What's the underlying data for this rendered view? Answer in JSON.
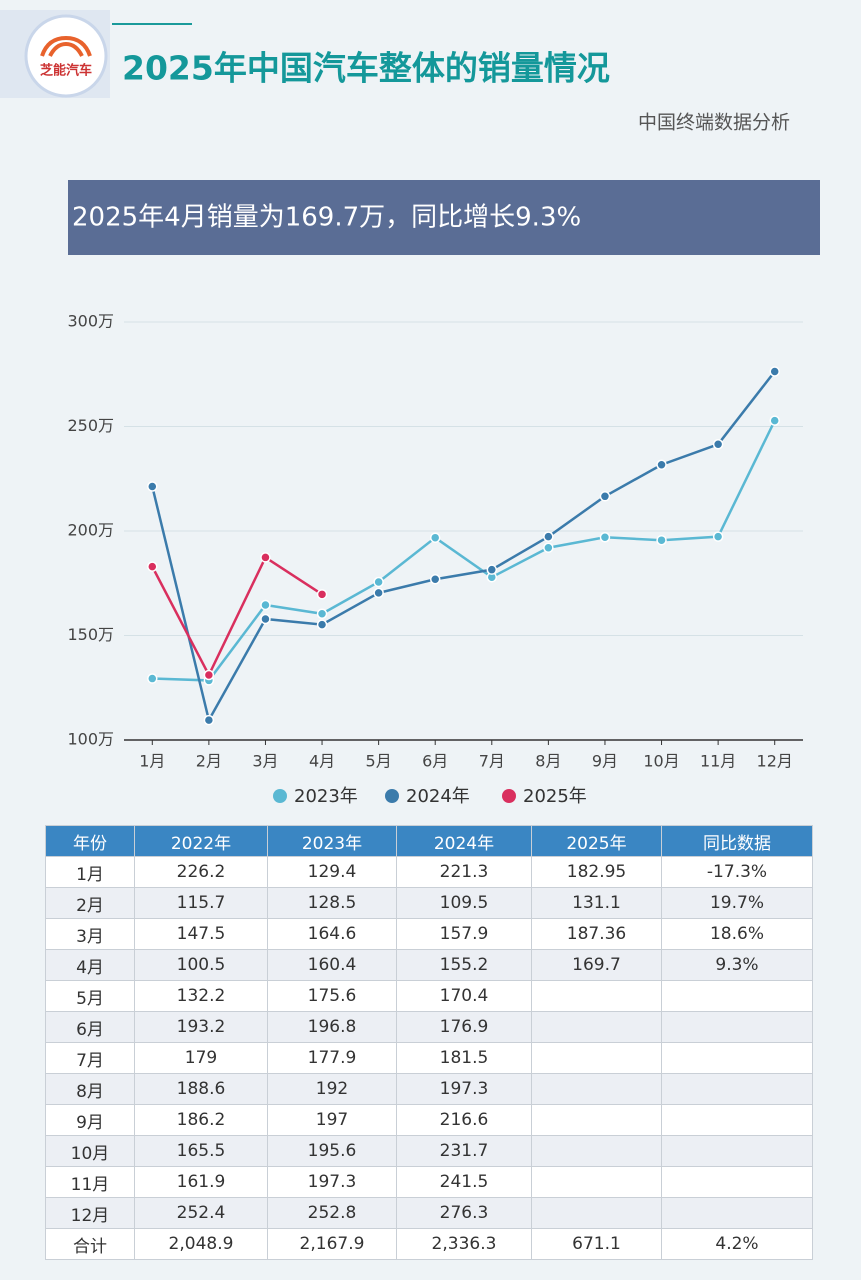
{
  "header": {
    "logo": "芝能汽车",
    "title": "2025年中国汽车整体的销量情况",
    "subtitle": "中国终端数据分析",
    "banner": "2025年4月销量为169.7万，同比增长9.3%"
  },
  "chart_data": {
    "type": "line",
    "categories": [
      "1月",
      "2月",
      "3月",
      "4月",
      "5月",
      "6月",
      "7月",
      "8月",
      "9月",
      "10月",
      "11月",
      "12月"
    ],
    "series": [
      {
        "name": "2023年",
        "color": "#5ab8d3",
        "values": [
          129.4,
          128.5,
          164.6,
          160.4,
          175.6,
          196.8,
          177.9,
          192,
          197,
          195.6,
          197.3,
          252.8
        ]
      },
      {
        "name": "2024年",
        "color": "#3b7bab",
        "values": [
          221.3,
          109.5,
          157.9,
          155.2,
          170.4,
          176.9,
          181.5,
          197.3,
          216.6,
          231.7,
          241.5,
          276.3
        ]
      },
      {
        "name": "2025年",
        "color": "#d92f5e",
        "values": [
          182.95,
          131.1,
          187.36,
          169.7,
          null,
          null,
          null,
          null,
          null,
          null,
          null,
          null
        ]
      }
    ],
    "ylim": [
      100,
      300
    ],
    "yticks": [
      {
        "value": 100,
        "label": "100万"
      },
      {
        "value": 150,
        "label": "150万"
      },
      {
        "value": 200,
        "label": "200万"
      },
      {
        "value": 250,
        "label": "250万"
      },
      {
        "value": 300,
        "label": "300万"
      }
    ],
    "grid": true,
    "legend": "bottom"
  },
  "table": {
    "header": [
      "年份",
      "2022年",
      "2023年",
      "2024年",
      "2025年",
      "同比数据"
    ],
    "rows": [
      [
        "1月",
        "226.2",
        "129.4",
        "221.3",
        "182.95",
        "-17.3%"
      ],
      [
        "2月",
        "115.7",
        "128.5",
        "109.5",
        "131.1",
        "19.7%"
      ],
      [
        "3月",
        "147.5",
        "164.6",
        "157.9",
        "187.36",
        "18.6%"
      ],
      [
        "4月",
        "100.5",
        "160.4",
        "155.2",
        "169.7",
        "9.3%"
      ],
      [
        "5月",
        "132.2",
        "175.6",
        "170.4",
        null,
        null
      ],
      [
        "6月",
        "193.2",
        "196.8",
        "176.9",
        null,
        null
      ],
      [
        "7月",
        "179",
        "177.9",
        "181.5",
        null,
        null
      ],
      [
        "8月",
        "188.6",
        "192",
        "197.3",
        null,
        null
      ],
      [
        "9月",
        "186.2",
        "197",
        "216.6",
        null,
        null
      ],
      [
        "10月",
        "165.5",
        "195.6",
        "231.7",
        null,
        null
      ],
      [
        "11月",
        "161.9",
        "197.3",
        "241.5",
        null,
        null
      ],
      [
        "12月",
        "252.4",
        "252.8",
        "276.3",
        null,
        null
      ],
      [
        "合计",
        "2,048.9",
        "2,167.9",
        "2,336.3",
        "671.1",
        "4.2%"
      ]
    ]
  }
}
